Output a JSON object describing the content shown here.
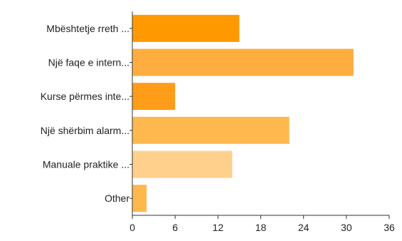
{
  "title": "",
  "chart_data": {
    "type": "bar",
    "orientation": "horizontal",
    "title": "",
    "categories": [
      "Mbështetje rreth ...",
      "Një faqe e intern...",
      "Kurse përmes inte...",
      "Një shërbim alarm...",
      "Manuale praktike ...",
      "Other"
    ],
    "values": [
      15,
      31,
      6,
      22,
      14,
      2
    ],
    "colors": [
      "#ff9900",
      "#ffad3f",
      "#ff9c1a",
      "#ffb84d",
      "#ffd08c",
      "#ffb84d"
    ],
    "xlim": [
      0,
      36
    ],
    "xticks": [
      "0",
      "6",
      "12",
      "18",
      "24",
      "30",
      "36"
    ],
    "grid": false,
    "legend": "none",
    "xlabel": "",
    "ylabel": ""
  }
}
